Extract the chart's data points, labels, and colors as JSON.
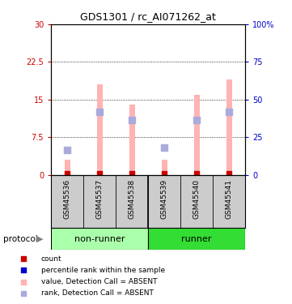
{
  "title": "GDS1301 / rc_AI071262_at",
  "samples": [
    "GSM45536",
    "GSM45537",
    "GSM45538",
    "GSM45539",
    "GSM45540",
    "GSM45541"
  ],
  "pink_bar_heights": [
    3.0,
    18.0,
    14.0,
    3.0,
    16.0,
    19.0
  ],
  "blue_square_positions": [
    5.0,
    12.5,
    11.0,
    5.5,
    11.0,
    12.5
  ],
  "ylim_left": [
    0,
    30
  ],
  "ylim_right": [
    0,
    100
  ],
  "yticks_left": [
    0,
    7.5,
    15,
    22.5,
    30
  ],
  "yticks_right": [
    0,
    25,
    50,
    75,
    100
  ],
  "yticklabels_left": [
    "0",
    "7.5",
    "15",
    "22.5",
    "30"
  ],
  "yticklabels_right": [
    "0",
    "25",
    "50",
    "75",
    "100%"
  ],
  "left_tick_color": "#cc0000",
  "right_tick_color": "#0000cc",
  "pink_color": "#ffb3b3",
  "blue_color": "#aaaadd",
  "red_color": "#cc0000",
  "group_colors": {
    "non-runner": "#aaffaa",
    "runner": "#33dd33"
  },
  "protocol_label": "protocol",
  "legend_items": [
    {
      "label": "count",
      "color": "#cc0000"
    },
    {
      "label": "percentile rank within the sample",
      "color": "#0000cc"
    },
    {
      "label": "value, Detection Call = ABSENT",
      "color": "#ffb3b3"
    },
    {
      "label": "rank, Detection Call = ABSENT",
      "color": "#aaaadd"
    }
  ],
  "pink_bar_width": 0.18,
  "blue_square_size": 40,
  "red_dot_size": 18,
  "grid_lines": [
    7.5,
    15,
    22.5
  ],
  "label_bg_color": "#cccccc",
  "sample_divider_color": "#888888"
}
